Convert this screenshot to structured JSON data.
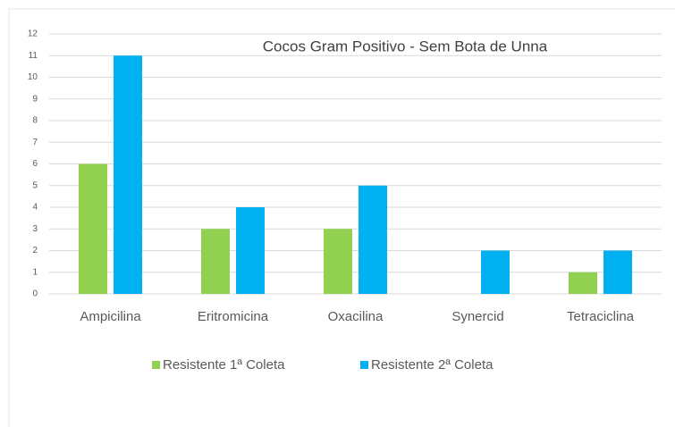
{
  "chart_data": {
    "type": "bar",
    "title": "Cocos Gram Positivo - Sem Bota de Unna",
    "categories": [
      "Ampicilina",
      "Eritromicina",
      "Oxacilina",
      "Synercid",
      "Tetraciclina"
    ],
    "series": [
      {
        "name": "Resistente 1ª Coleta",
        "color": "#92d050",
        "values": [
          6,
          3,
          3,
          0,
          1
        ]
      },
      {
        "name": "Resistente 2ª Coleta",
        "color": "#00b0f0",
        "values": [
          11,
          4,
          5,
          2,
          2
        ]
      }
    ],
    "ylim": [
      0,
      12
    ],
    "yticks": [
      0,
      1,
      2,
      3,
      4,
      5,
      6,
      7,
      8,
      9,
      10,
      11,
      12
    ],
    "grid": true,
    "legend": "bottom"
  }
}
